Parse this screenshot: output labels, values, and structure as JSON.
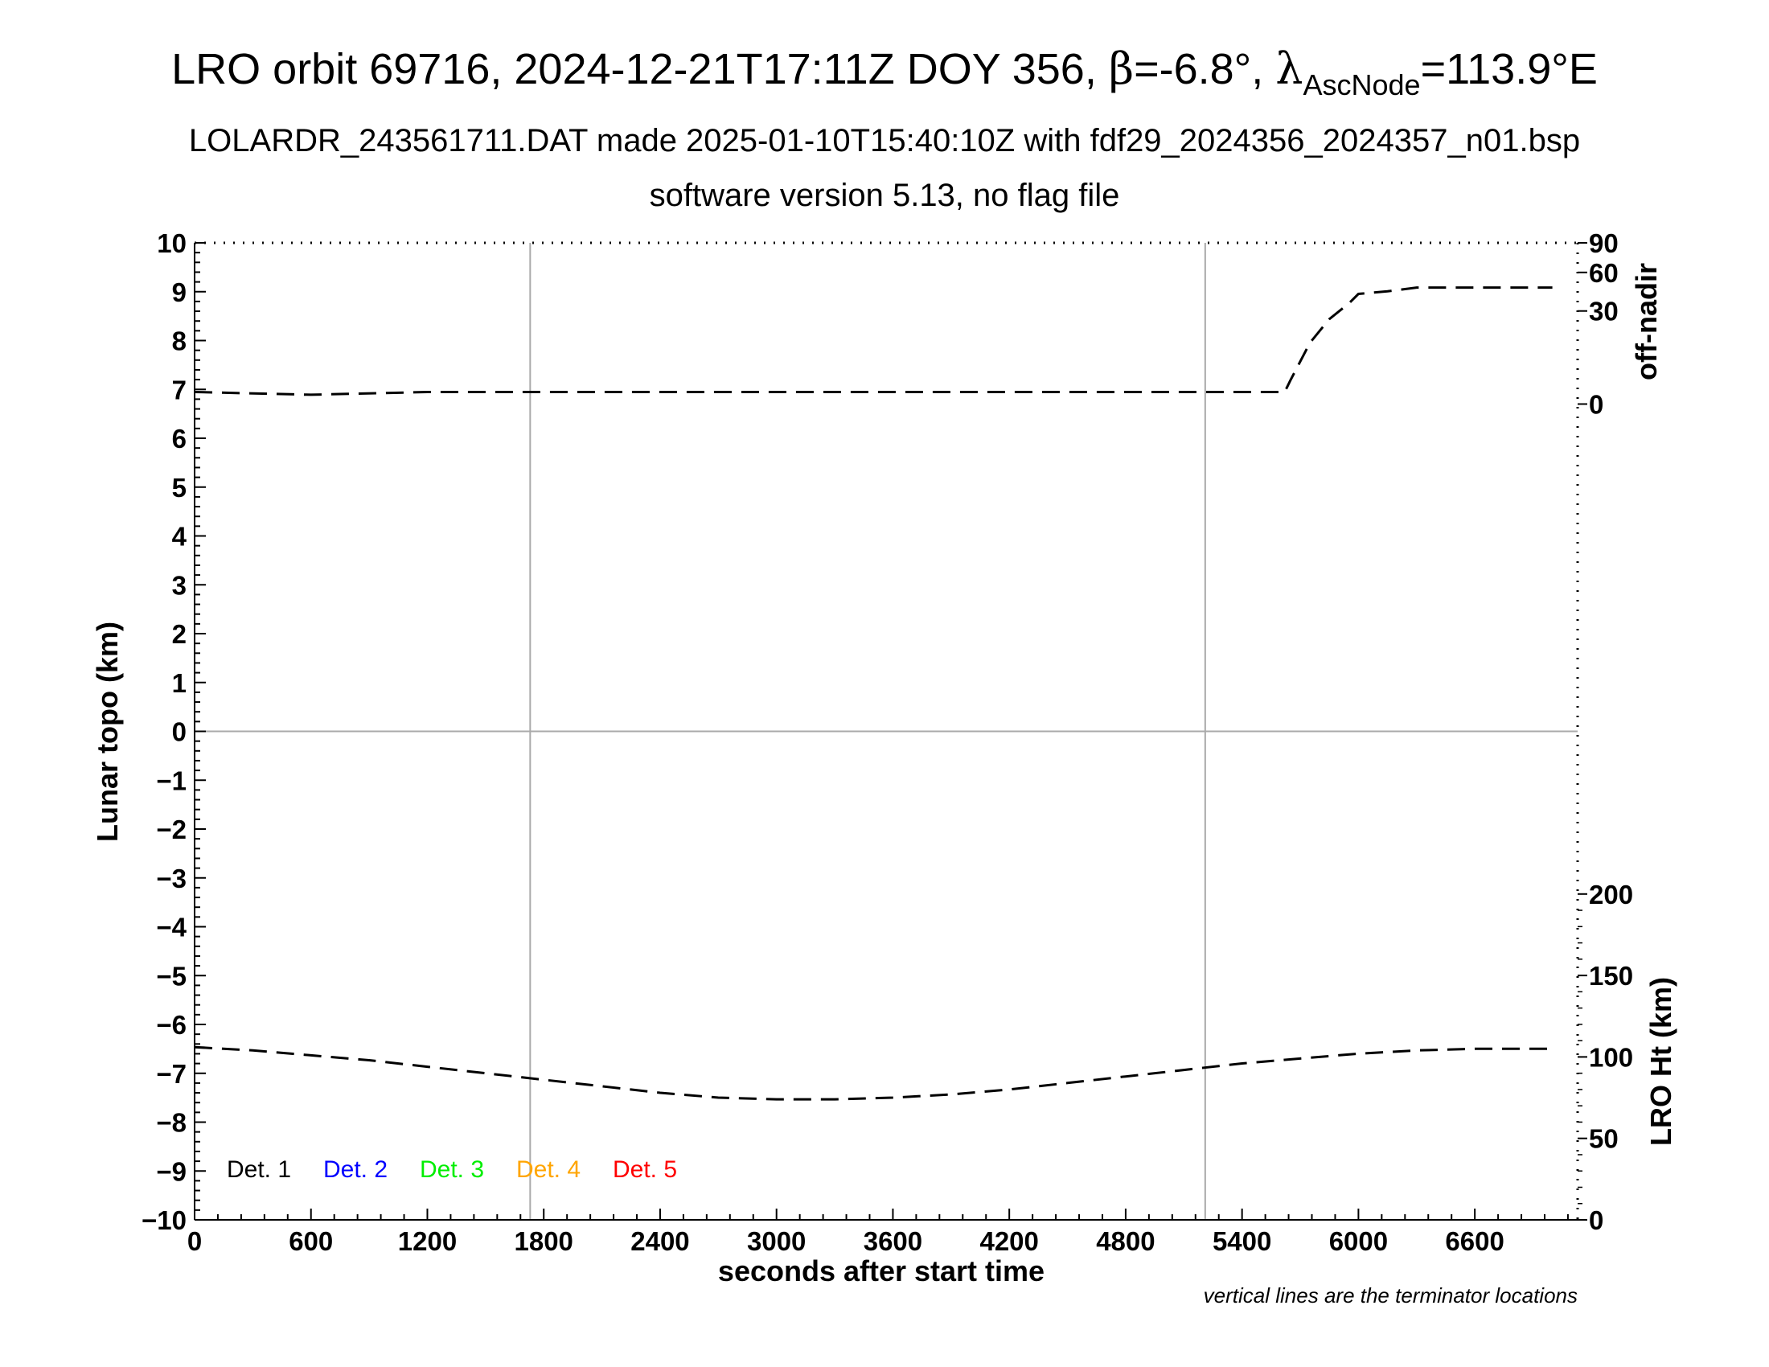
{
  "chart_data": {
    "type": "line",
    "title_pre": "LRO orbit 69716, 2024-12-21T17:11Z DOY 356, ",
    "title_beta_symbol": "β",
    "title_beta_value": "=-6.8°, ",
    "title_lambda_symbol": "λ",
    "title_lambda_subscript": "AscNode",
    "title_post": "=113.9°E",
    "subtitle1": "LOLARDR_243561711.DAT made 2025-01-10T15:40:10Z with fdf29_2024356_2024357_n01.bsp",
    "subtitle2": "software version 5.13, no flag file",
    "xlabel": "seconds after start time",
    "ylabel_left": "Lunar topo (km)",
    "ylabel_right_top": "off-nadir",
    "ylabel_right_bottom": "LRO Ht (km)",
    "note": "vertical lines are the terminator locations",
    "xlim": [
      0,
      7130
    ],
    "ylim": [
      -10,
      10
    ],
    "x_ticks": [
      "0",
      "600",
      "1200",
      "1800",
      "2400",
      "3000",
      "3600",
      "4200",
      "4800",
      "5400",
      "6000",
      "6600"
    ],
    "y_ticks": [
      "10",
      "9",
      "8",
      "7",
      "6",
      "5",
      "4",
      "3",
      "2",
      "1",
      "0",
      "−1",
      "−2",
      "−3",
      "−4",
      "−5",
      "−6",
      "−7",
      "−8",
      "−9",
      "−10"
    ],
    "right_top_ticks": [
      "90",
      "60",
      "30",
      "0"
    ],
    "right_bottom_ticks": [
      "200",
      "150",
      "100",
      "50",
      "0"
    ],
    "grid": true,
    "terminator_x": [
      1730,
      5210
    ],
    "legend": [
      {
        "label": "Det. 1",
        "color": "#000000"
      },
      {
        "label": "Det. 2",
        "color": "#0000ff"
      },
      {
        "label": "Det. 3",
        "color": "#00ee00"
      },
      {
        "label": "Det. 4",
        "color": "#ffa500"
      },
      {
        "label": "Det. 5",
        "color": "#ff0000"
      }
    ],
    "series": [
      {
        "axis": "off-nadir (deg)",
        "style": "dashed",
        "x": [
          0,
          600,
          1200,
          1800,
          2400,
          3000,
          3600,
          4200,
          4800,
          5400,
          5620,
          5650,
          5750,
          5850,
          5950,
          6000,
          6150,
          6300,
          6600,
          6900,
          7000
        ],
        "y": [
          0.5,
          0.3,
          0.5,
          0.5,
          0.5,
          0.5,
          0.5,
          0.5,
          0.5,
          0.5,
          0.5,
          2,
          13,
          25,
          35,
          42,
          44,
          47,
          47,
          47,
          47
        ]
      },
      {
        "axis": "LRO Ht (km)",
        "style": "dashed",
        "x": [
          0,
          300,
          600,
          900,
          1200,
          1500,
          1800,
          2100,
          2400,
          2700,
          3000,
          3300,
          3600,
          3900,
          4200,
          4500,
          4800,
          5100,
          5400,
          5700,
          6000,
          6300,
          6600,
          6800,
          7000
        ],
        "y": [
          106,
          104,
          101,
          98,
          94,
          90,
          86,
          82,
          78,
          75,
          74,
          74,
          75,
          77,
          80,
          84,
          88,
          92,
          96,
          99,
          102,
          104,
          105,
          105,
          105
        ]
      }
    ]
  }
}
